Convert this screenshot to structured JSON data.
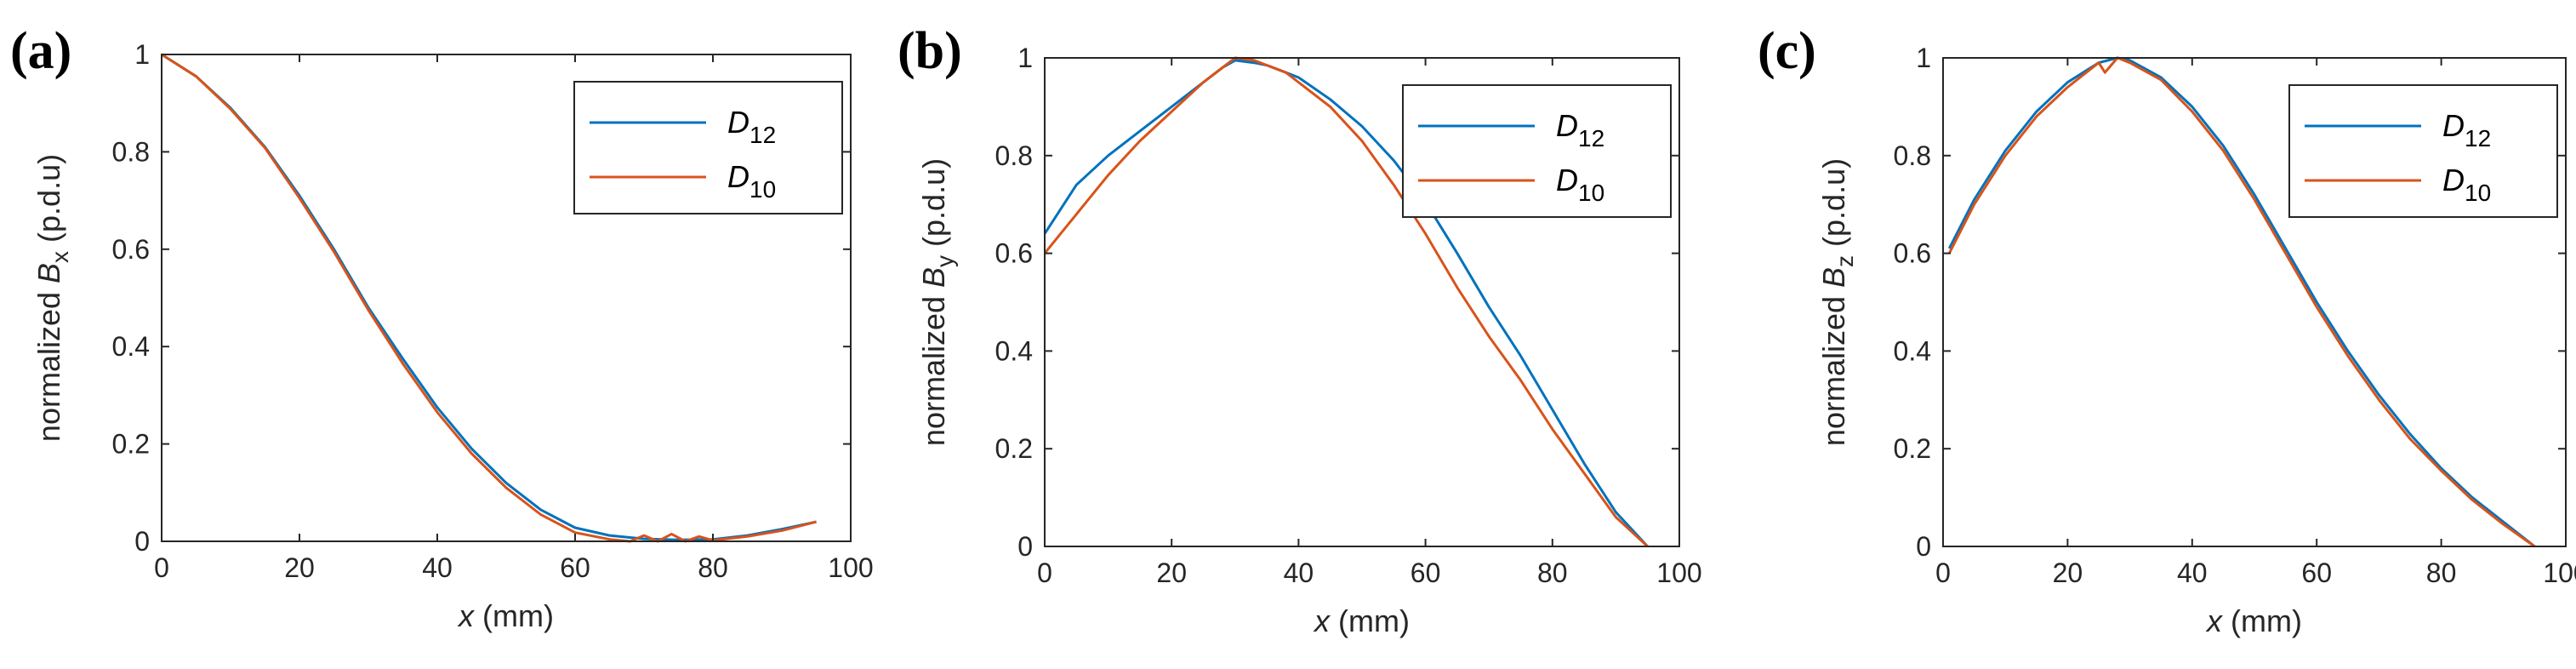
{
  "colors": {
    "D12": "#0072BD",
    "D10": "#D95319",
    "axis": "#262626"
  },
  "chart_data": [
    {
      "type": "line",
      "panel_label": "(a)",
      "xlabel": {
        "var": "x",
        "unit": " (mm)"
      },
      "ylabel": {
        "prefix": "normalized ",
        "var": "B",
        "sub": "x",
        "unit": " (p.d.u)"
      },
      "xlim": [
        0,
        100
      ],
      "ylim": [
        0,
        1
      ],
      "xticks": [
        0,
        20,
        40,
        60,
        80,
        100
      ],
      "yticks": [
        0,
        0.2,
        0.4,
        0.6,
        0.8,
        1
      ],
      "ytick_labels": [
        "0",
        "0.2",
        "0.4",
        "0.6",
        "0.8",
        "1"
      ],
      "legend": "top-right",
      "series": [
        {
          "name": "D",
          "sub": "12",
          "color": "#0072BD",
          "x": [
            0,
            5,
            10,
            15,
            20,
            25,
            30,
            35,
            40,
            45,
            50,
            55,
            60,
            65,
            70,
            75,
            80,
            85,
            90,
            95
          ],
          "y": [
            1.0,
            0.955,
            0.89,
            0.81,
            0.71,
            0.6,
            0.48,
            0.375,
            0.275,
            0.19,
            0.12,
            0.065,
            0.028,
            0.012,
            0.005,
            0.003,
            0.004,
            0.012,
            0.025,
            0.04
          ]
        },
        {
          "name": "D",
          "sub": "10",
          "color": "#D95319",
          "x": [
            0,
            5,
            10,
            15,
            20,
            25,
            30,
            35,
            40,
            45,
            50,
            55,
            60,
            65,
            68,
            70,
            72,
            74,
            76,
            78,
            80,
            85,
            90,
            95
          ],
          "y": [
            1.0,
            0.955,
            0.888,
            0.808,
            0.705,
            0.595,
            0.475,
            0.365,
            0.265,
            0.18,
            0.11,
            0.055,
            0.018,
            0.004,
            0.0,
            0.012,
            0.0,
            0.015,
            0.0,
            0.01,
            0.002,
            0.01,
            0.022,
            0.04
          ]
        }
      ]
    },
    {
      "type": "line",
      "panel_label": "(b)",
      "xlabel": {
        "var": "x",
        "unit": " (mm)"
      },
      "ylabel": {
        "prefix": "normalized ",
        "var": "B",
        "sub": "y",
        "unit": " (p.d.u)"
      },
      "xlim": [
        0,
        100
      ],
      "ylim": [
        0,
        1
      ],
      "xticks": [
        0,
        20,
        40,
        60,
        80,
        100
      ],
      "yticks": [
        0,
        0.2,
        0.4,
        0.6,
        0.8,
        1
      ],
      "ytick_labels": [
        "0",
        "0.2",
        "0.4",
        "0.6",
        "0.8",
        "1"
      ],
      "legend": "top-right",
      "series": [
        {
          "name": "D",
          "sub": "12",
          "color": "#0072BD",
          "x": [
            0,
            5,
            10,
            15,
            20,
            25,
            28,
            30,
            33,
            35,
            38,
            40,
            45,
            50,
            55,
            60,
            65,
            70,
            75,
            80,
            85,
            90,
            95
          ],
          "y": [
            0.64,
            0.74,
            0.8,
            0.85,
            0.9,
            0.95,
            0.98,
            0.995,
            0.99,
            0.985,
            0.97,
            0.96,
            0.915,
            0.86,
            0.79,
            0.705,
            0.6,
            0.49,
            0.39,
            0.28,
            0.17,
            0.07,
            0.0
          ]
        },
        {
          "name": "D",
          "sub": "10",
          "color": "#D95319",
          "x": [
            0,
            5,
            10,
            15,
            20,
            25,
            28,
            30,
            33,
            35,
            38,
            40,
            45,
            50,
            55,
            60,
            65,
            70,
            75,
            80,
            85,
            90,
            95
          ],
          "y": [
            0.6,
            0.68,
            0.76,
            0.83,
            0.89,
            0.95,
            0.98,
            1.0,
            0.995,
            0.985,
            0.97,
            0.95,
            0.9,
            0.83,
            0.74,
            0.64,
            0.53,
            0.43,
            0.34,
            0.24,
            0.15,
            0.06,
            0.0
          ]
        }
      ]
    },
    {
      "type": "line",
      "panel_label": "(c)",
      "xlabel": {
        "var": "x",
        "unit": " (mm)"
      },
      "ylabel": {
        "prefix": "normalized ",
        "var": "B",
        "sub": "z",
        "unit": " (p.d.u)"
      },
      "xlim": [
        0,
        100
      ],
      "ylim": [
        0,
        1
      ],
      "xticks": [
        0,
        20,
        40,
        60,
        80,
        100
      ],
      "yticks": [
        0,
        0.2,
        0.4,
        0.6,
        0.8,
        1
      ],
      "ytick_labels": [
        "0",
        "0.2",
        "0.4",
        "0.6",
        "0.8",
        "1"
      ],
      "legend": "top-right",
      "series": [
        {
          "name": "D",
          "sub": "12",
          "color": "#0072BD",
          "x": [
            1,
            5,
            10,
            15,
            20,
            25,
            28,
            30,
            35,
            40,
            45,
            50,
            55,
            60,
            65,
            70,
            75,
            80,
            85,
            90,
            95
          ],
          "y": [
            0.61,
            0.71,
            0.81,
            0.89,
            0.95,
            0.99,
            1.0,
            0.995,
            0.96,
            0.9,
            0.82,
            0.72,
            0.61,
            0.5,
            0.4,
            0.31,
            0.23,
            0.16,
            0.1,
            0.05,
            0.0
          ]
        },
        {
          "name": "D",
          "sub": "10",
          "color": "#D95319",
          "x": [
            1,
            5,
            10,
            15,
            20,
            25,
            26,
            27,
            28,
            30,
            35,
            40,
            45,
            50,
            55,
            60,
            65,
            70,
            75,
            80,
            85,
            90,
            95
          ],
          "y": [
            0.6,
            0.7,
            0.8,
            0.88,
            0.94,
            0.99,
            0.97,
            0.985,
            1.0,
            0.99,
            0.955,
            0.89,
            0.81,
            0.71,
            0.6,
            0.49,
            0.39,
            0.3,
            0.22,
            0.155,
            0.095,
            0.045,
            0.0
          ]
        }
      ]
    }
  ]
}
